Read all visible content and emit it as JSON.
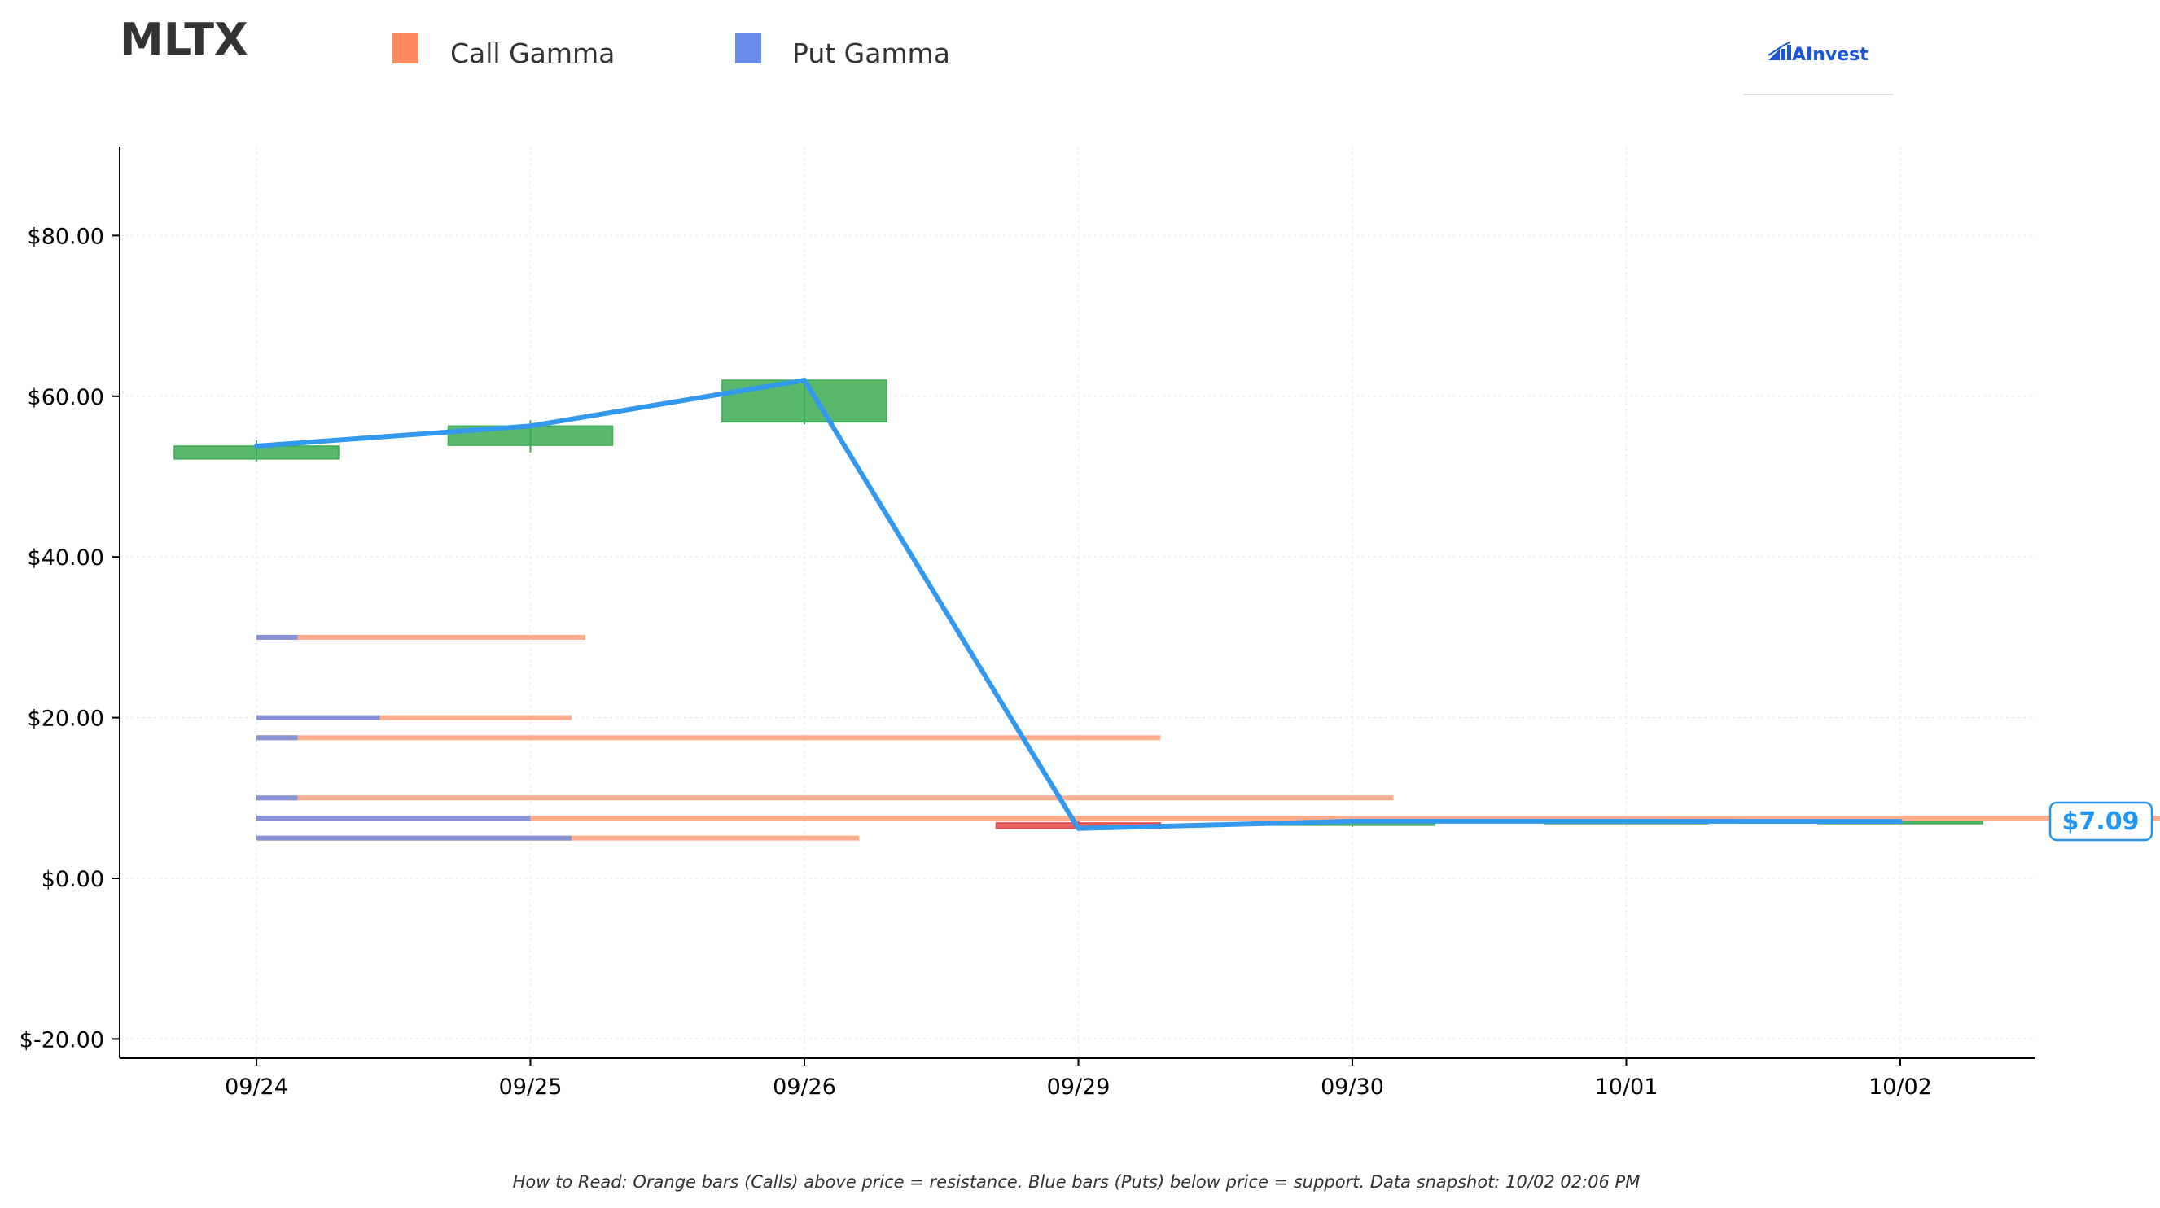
{
  "ticker": "MLTX",
  "legend": [
    {
      "label": "Call Gamma",
      "color": "#FF8A5C"
    },
    {
      "label": "Put Gamma",
      "color": "#6A8BE8"
    }
  ],
  "brand": {
    "name": "AInvest",
    "icon": "ainvest-logo-icon",
    "color": "#1A56DB"
  },
  "footer": "How to Read: Orange bars (Calls) above price = resistance. Blue bars (Puts) below price = support. Data snapshot: 10/02 02:06 PM",
  "price_badge": {
    "label": "$7.09",
    "value": 7.09,
    "color": "#2196F3"
  },
  "colors": {
    "up": "#3CAB52",
    "down": "#E04848",
    "price_line": "#3399EE",
    "call": "#FF8A5C",
    "put": "#6A8BE8"
  },
  "chart_data": {
    "type": "candlestick",
    "categories": [
      "09/24",
      "09/25",
      "09/26",
      "09/29",
      "09/30",
      "10/01",
      "10/02"
    ],
    "ylim": [
      -22,
      91
    ],
    "yticks": [
      -20,
      0,
      20,
      40,
      60,
      80
    ],
    "ytick_labels": [
      "$-20.00",
      "$0.00",
      "$20.00",
      "$40.00",
      "$60.00",
      "$80.00"
    ],
    "grid": true,
    "candles": [
      {
        "date": "09/24",
        "open": 52.2,
        "close": 53.8,
        "high": 54.5,
        "low": 51.9
      },
      {
        "date": "09/25",
        "open": 53.9,
        "close": 56.3,
        "high": 57.0,
        "low": 53.0
      },
      {
        "date": "09/26",
        "open": 56.8,
        "close": 62.0,
        "high": 62.3,
        "low": 56.5
      },
      {
        "date": "09/29",
        "open": 6.9,
        "close": 6.2,
        "high": 7.1,
        "low": 6.0
      },
      {
        "date": "09/30",
        "open": 6.6,
        "close": 7.1,
        "high": 7.3,
        "low": 6.4
      },
      {
        "date": "10/01",
        "open": 7.0,
        "close": 7.1,
        "high": 7.3,
        "low": 6.9
      },
      {
        "date": "10/02",
        "open": 7.0,
        "close": 7.1,
        "high": 7.2,
        "low": 6.9
      }
    ],
    "price_line": {
      "name": "Price",
      "values": [
        53.8,
        56.3,
        62.0,
        6.2,
        7.1,
        7.1,
        7.09
      ]
    },
    "gamma_levels": [
      {
        "strike": 30,
        "call": 1.2,
        "put": 0.15
      },
      {
        "strike": 20,
        "call": 1.15,
        "put": 0.45
      },
      {
        "strike": 17.5,
        "call": 3.3,
        "put": 0.15
      },
      {
        "strike": 10,
        "call": 4.15,
        "put": 0.15
      },
      {
        "strike": 7.5,
        "call": 11.9,
        "put": 1.0
      },
      {
        "strike": 5,
        "call": 2.2,
        "put": 1.15
      }
    ]
  }
}
